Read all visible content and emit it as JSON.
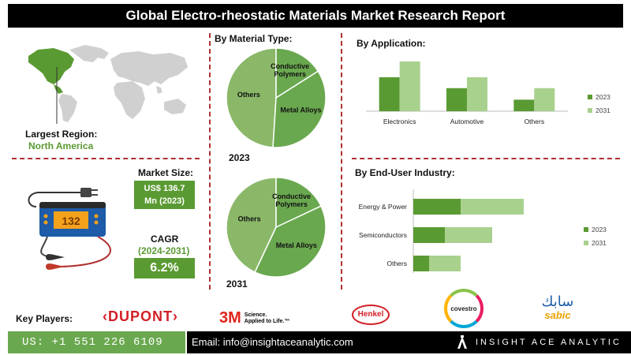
{
  "title": "Global Electro-rheostatic Materials Market Research Report",
  "region": {
    "label": "Largest Region:",
    "value": "North America"
  },
  "market_size": {
    "label": "Market Size:",
    "line1": "US$ 136.7",
    "line2": "Mn (2023)"
  },
  "cagr": {
    "label": "CAGR",
    "period": "(2024-2031)",
    "value": "6.2%"
  },
  "device": {
    "display": "132"
  },
  "key_players": {
    "label": "Key Players:",
    "dupont": "DUPONT",
    "threem_mark": "3M",
    "threem_line1": "Science.",
    "threem_line2": "Applied to Life.",
    "threem_tm": "™",
    "henkel": "Henkel",
    "covestro": "covestro",
    "sabic_arabic": "سابك",
    "sabic": "sabic"
  },
  "footer": {
    "phone": "US: +1 551 226 6109",
    "email": "Email: info@insightaceanalytic.com",
    "brand": "INSIGHT ACE ANALYTIC"
  },
  "colors": {
    "dark_green": "#5a9a32",
    "light_green": "#a9d18e",
    "pie_green": "#8ab868",
    "dash_red": "#b03030"
  },
  "chart_data": [
    {
      "type": "pie",
      "title": "By Material Type:",
      "year": "2023",
      "slices": [
        {
          "label": "Others",
          "value": 49
        },
        {
          "label": "Conductive Polymers",
          "value": 16
        },
        {
          "label": "Metal Alloys",
          "value": 35
        }
      ]
    },
    {
      "type": "pie",
      "title": "",
      "year": "2031",
      "slices": [
        {
          "label": "Others",
          "value": 43
        },
        {
          "label": "Conductive Polymers",
          "value": 18
        },
        {
          "label": "Metal Alloys",
          "value": 39
        }
      ]
    },
    {
      "type": "bar",
      "title": "By Application:",
      "categories": [
        "Electronics",
        "Automotive",
        "Others"
      ],
      "series": [
        {
          "name": "2023",
          "values": [
            5.6,
            3.8,
            1.9
          ]
        },
        {
          "name": "2031",
          "values": [
            8.2,
            5.6,
            3.8
          ]
        }
      ],
      "ylim": [
        0,
        10
      ]
    },
    {
      "type": "bar",
      "orientation": "horizontal",
      "stacked": true,
      "title": "By End-User Industry:",
      "categories": [
        "Energy & Power",
        "Semiconductors",
        "Others"
      ],
      "series": [
        {
          "name": "2023",
          "values": [
            3.0,
            2.0,
            1.0
          ]
        },
        {
          "name": "2031",
          "values": [
            4.0,
            3.0,
            2.0
          ]
        }
      ],
      "xlim": [
        0,
        10
      ]
    }
  ]
}
